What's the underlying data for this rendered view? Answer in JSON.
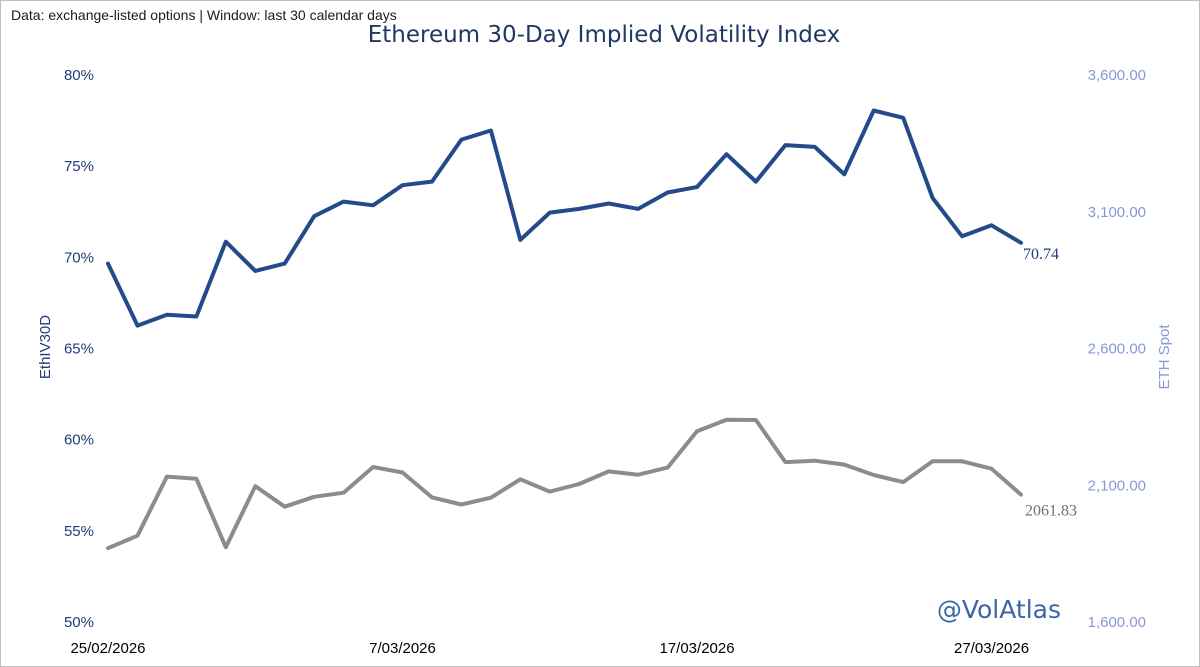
{
  "chart_data": {
    "type": "line",
    "title": "Ethereum 30-Day Implied Volatility Index",
    "subtitle": "Data: exchange-listed options | Window: last 30 calendar days",
    "watermark": "@VolAtlas",
    "y_left": {
      "label": "EthIV30D",
      "range": [
        50,
        80
      ],
      "ticks": [
        50,
        55,
        60,
        65,
        70,
        75,
        80
      ],
      "tick_labels": [
        "50%",
        "55%",
        "60%",
        "65%",
        "70%",
        "75%",
        "80%"
      ],
      "color": "#1f3d7a"
    },
    "y_right": {
      "label": "ETH Spot",
      "range": [
        1600,
        3600
      ],
      "ticks": [
        1600,
        2100,
        2600,
        3100,
        3600
      ],
      "tick_labels": [
        "1,600.00",
        "2,100.00",
        "2,600.00",
        "3,100.00",
        "3,600.00"
      ],
      "color": "#8a97d6"
    },
    "x_tick_labels": [
      {
        "index": 0,
        "label": "25/02/2026"
      },
      {
        "index": 10,
        "label": "7/03/2026"
      },
      {
        "index": 20,
        "label": "17/03/2026"
      },
      {
        "index": 30,
        "label": "27/03/2026"
      }
    ],
    "series": [
      {
        "name": "EthIV30D",
        "axis": "left",
        "color": "#234a8a",
        "end_label": "70.74",
        "values": [
          69.6,
          66.2,
          66.8,
          66.7,
          70.8,
          69.2,
          69.6,
          72.2,
          73.0,
          72.8,
          73.9,
          74.1,
          76.4,
          76.9,
          70.9,
          72.4,
          72.6,
          72.9,
          72.6,
          73.5,
          73.8,
          75.6,
          74.1,
          76.1,
          76.0,
          74.5,
          78.0,
          77.6,
          73.2,
          71.1,
          71.7,
          70.74
        ]
      },
      {
        "name": "ETH Spot",
        "axis": "right",
        "color": "#8c8c8c",
        "end_label": "2061.83",
        "values": [
          1866,
          1912,
          2128,
          2120,
          1870,
          2093,
          2018,
          2054,
          2069,
          2163,
          2143,
          2052,
          2026,
          2051,
          2118,
          2073,
          2101,
          2147,
          2135,
          2161,
          2294,
          2336,
          2335,
          2181,
          2186,
          2172,
          2134,
          2108,
          2184,
          2184,
          2157,
          2062
        ]
      }
    ]
  }
}
